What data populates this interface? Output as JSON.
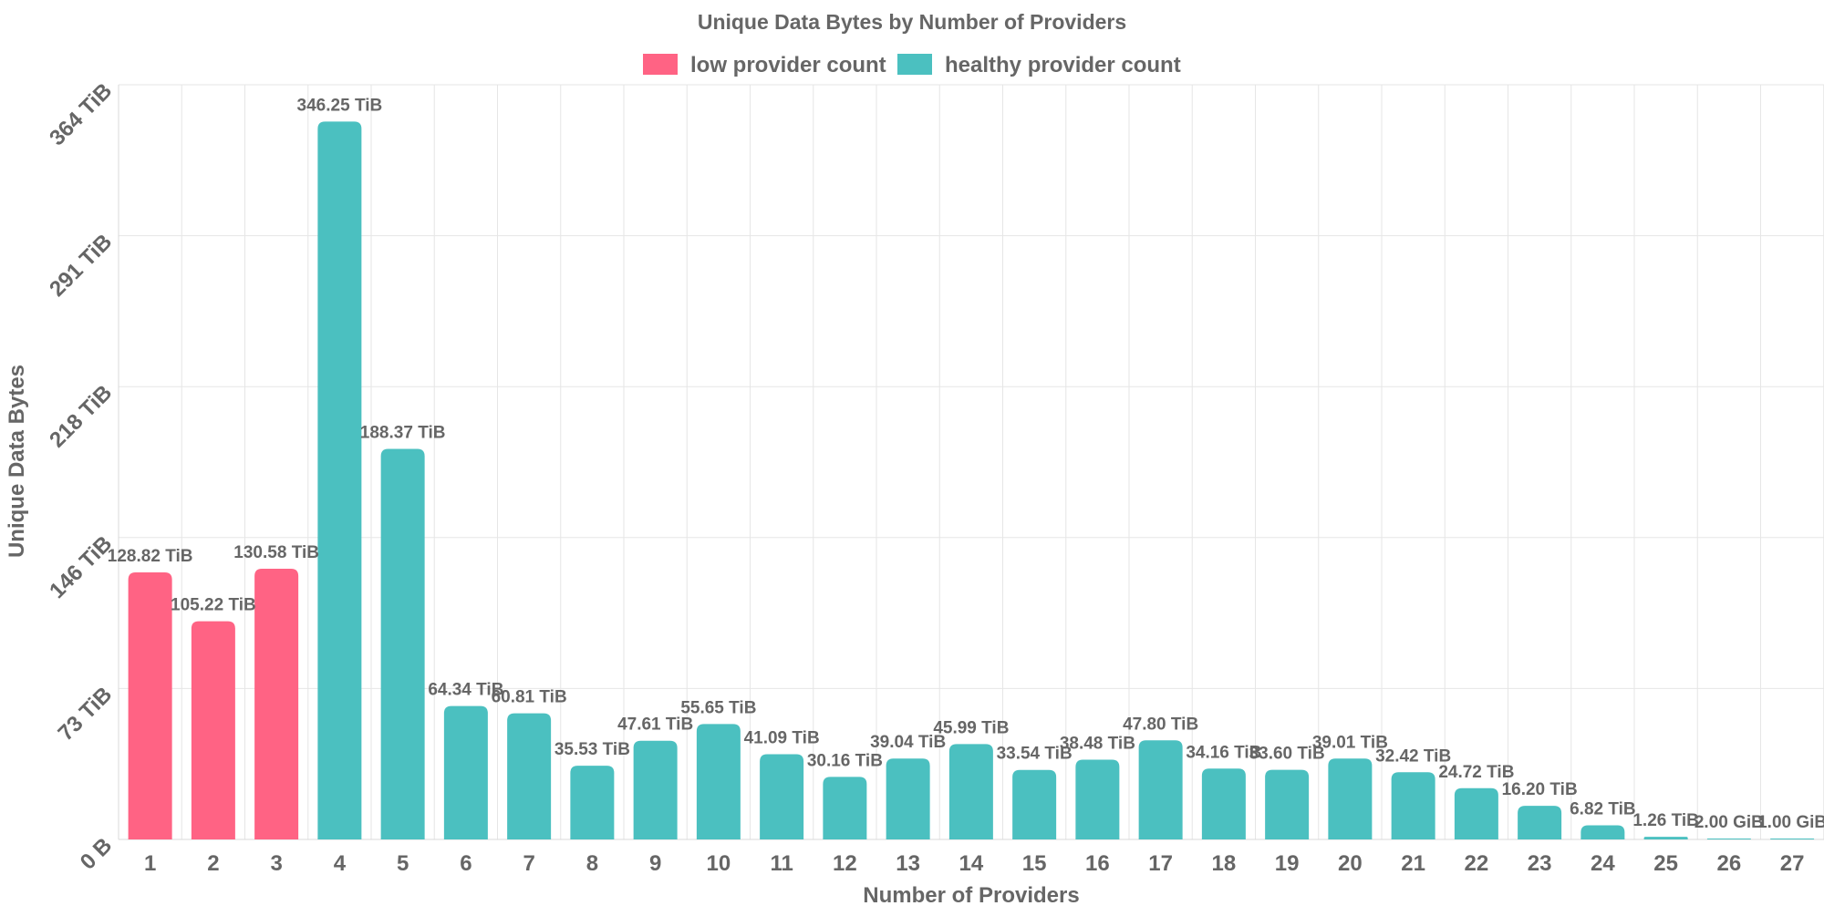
{
  "chart_data": {
    "type": "bar",
    "title": "Unique Data Bytes by Number of Providers",
    "xlabel": "Number of Providers",
    "ylabel": "Unique Data Bytes",
    "categories": [
      "1",
      "2",
      "3",
      "4",
      "5",
      "6",
      "7",
      "8",
      "9",
      "10",
      "11",
      "12",
      "13",
      "14",
      "15",
      "16",
      "17",
      "18",
      "19",
      "20",
      "21",
      "22",
      "23",
      "24",
      "25",
      "26",
      "27"
    ],
    "values_tib": [
      128.82,
      105.22,
      130.58,
      346.25,
      188.37,
      64.34,
      60.81,
      35.53,
      47.61,
      55.65,
      41.09,
      30.16,
      39.04,
      45.99,
      33.54,
      38.48,
      47.8,
      34.16,
      33.6,
      39.01,
      32.42,
      24.72,
      16.2,
      6.82,
      1.26,
      0.00195,
      0.00098
    ],
    "value_labels": [
      "128.82 TiB",
      "105.22 TiB",
      "130.58 TiB",
      "346.25 TiB",
      "188.37 TiB",
      "64.34 TiB",
      "60.81 TiB",
      "35.53 TiB",
      "47.61 TiB",
      "55.65 TiB",
      "41.09 TiB",
      "30.16 TiB",
      "39.04 TiB",
      "45.99 TiB",
      "33.54 TiB",
      "38.48 TiB",
      "47.80 TiB",
      "34.16 TiB",
      "33.60 TiB",
      "39.01 TiB",
      "32.42 TiB",
      "24.72 TiB",
      "16.20 TiB",
      "6.82 TiB",
      "1.26 TiB",
      "2.00 GiB",
      "1.00 GiB"
    ],
    "bar_series": [
      "low",
      "low",
      "low",
      "healthy",
      "healthy",
      "healthy",
      "healthy",
      "healthy",
      "healthy",
      "healthy",
      "healthy",
      "healthy",
      "healthy",
      "healthy",
      "healthy",
      "healthy",
      "healthy",
      "healthy",
      "healthy",
      "healthy",
      "healthy",
      "healthy",
      "healthy",
      "healthy",
      "healthy",
      "healthy",
      "healthy"
    ],
    "series": [
      {
        "key": "low",
        "name": "low provider count",
        "color": "#ff6384"
      },
      {
        "key": "healthy",
        "name": "healthy provider count",
        "color": "#4bc0c0"
      }
    ],
    "y_ticks": [
      {
        "value": 0,
        "label": "0 B"
      },
      {
        "value": 72.8,
        "label": "73 TiB"
      },
      {
        "value": 145.6,
        "label": "146 TiB"
      },
      {
        "value": 218.4,
        "label": "218 TiB"
      },
      {
        "value": 291.2,
        "label": "291 TiB"
      },
      {
        "value": 364,
        "label": "364 TiB"
      }
    ],
    "ylim": [
      0,
      364
    ],
    "grid": true,
    "legend_position": "top-center"
  }
}
